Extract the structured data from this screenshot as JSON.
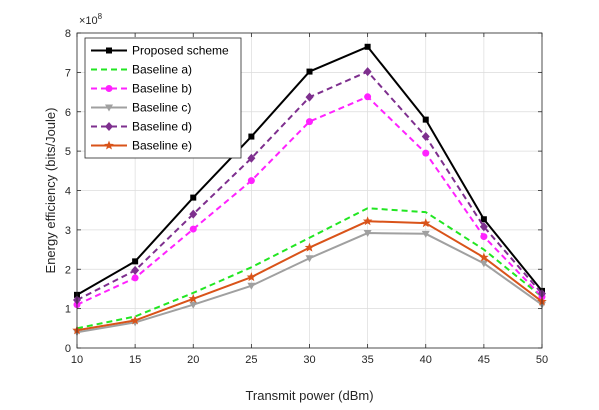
{
  "chart_data": {
    "type": "line",
    "xlabel": "Transmit power (dBm)",
    "ylabel": "Energy efficiency (bits/Joule)",
    "y_exponent_label": "×10",
    "y_exponent_power": "8",
    "x": [
      10,
      15,
      20,
      25,
      30,
      35,
      40,
      45,
      50
    ],
    "xlim": [
      10,
      50
    ],
    "ylim": [
      0,
      8
    ],
    "xticks": [
      10,
      15,
      20,
      25,
      30,
      35,
      40,
      45,
      50
    ],
    "yticks": [
      0,
      1,
      2,
      3,
      4,
      5,
      6,
      7,
      8
    ],
    "grid": true,
    "legend_position": "top-left",
    "series": [
      {
        "name": "Proposed scheme",
        "color": "#000000",
        "dash": "solid",
        "marker": "square",
        "values": [
          1.35,
          2.2,
          3.82,
          5.37,
          7.02,
          7.65,
          5.8,
          3.27,
          1.45
        ]
      },
      {
        "name": "Baseline a)",
        "color": "#22e622",
        "dash": "dashed",
        "marker": "none",
        "values": [
          0.5,
          0.8,
          1.4,
          2.05,
          2.8,
          3.55,
          3.45,
          2.5,
          1.3
        ]
      },
      {
        "name": "Baseline b)",
        "color": "#ff22ff",
        "dash": "dashed",
        "marker": "circle",
        "values": [
          1.1,
          1.78,
          3.02,
          4.25,
          5.75,
          6.38,
          4.95,
          2.83,
          1.3
        ]
      },
      {
        "name": "Baseline c)",
        "color": "#a0a0a0",
        "dash": "solid",
        "marker": "triangle-down",
        "values": [
          0.4,
          0.65,
          1.1,
          1.58,
          2.28,
          2.92,
          2.9,
          2.15,
          1.1
        ]
      },
      {
        "name": "Baseline d)",
        "color": "#7e2f8e",
        "dash": "dashed",
        "marker": "diamond",
        "values": [
          1.22,
          1.97,
          3.4,
          4.82,
          6.37,
          7.02,
          5.37,
          3.08,
          1.38
        ]
      },
      {
        "name": "Baseline e)",
        "color": "#d95319",
        "dash": "solid",
        "marker": "star",
        "values": [
          0.45,
          0.7,
          1.25,
          1.8,
          2.55,
          3.22,
          3.17,
          2.3,
          1.18
        ]
      }
    ]
  }
}
